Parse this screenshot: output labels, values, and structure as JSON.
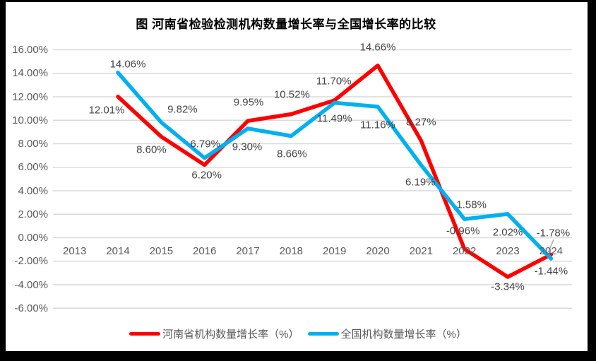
{
  "chart_data": {
    "type": "line",
    "title": "图  河南省检验检测机构数量增长率与全国增长率的比较",
    "categories": [
      "2013",
      "2014",
      "2015",
      "2016",
      "2017",
      "2018",
      "2019",
      "2020",
      "2021",
      "2022",
      "2023",
      "2024"
    ],
    "series": [
      {
        "name": "河南省机构数量增长率（%）",
        "color": "#FF0000",
        "values": [
          null,
          12.01,
          8.6,
          6.2,
          9.95,
          10.52,
          11.7,
          14.66,
          8.27,
          -0.96,
          -3.34,
          -1.44
        ],
        "labels": [
          null,
          "12.01%",
          "8.60%",
          "6.20%",
          "9.95%",
          "10.52%",
          "11.70%",
          "14.66%",
          "8.27%",
          "-0.96%",
          "-3.34%",
          "-1.44%"
        ]
      },
      {
        "name": "全国机构数量增长率（%）",
        "color": "#00B0F0",
        "values": [
          null,
          14.06,
          9.82,
          6.79,
          9.3,
          8.66,
          11.49,
          11.16,
          6.19,
          1.58,
          2.02,
          -1.78
        ],
        "labels": [
          null,
          "14.06%",
          "9.82%",
          "6.79%",
          "9.30%",
          "8.66%",
          "11.49%",
          "11.16%",
          "6.19%",
          "1.58%",
          "2.02%",
          "-1.78%"
        ]
      }
    ],
    "y_axis": {
      "min": -6,
      "max": 16,
      "step": 2,
      "tick_labels": [
        "16.00%",
        "14.00%",
        "12.00%",
        "10.00%",
        "8.00%",
        "6.00%",
        "4.00%",
        "2.00%",
        "0.00%",
        "-2.00%",
        "-4.00%",
        "-6.00%"
      ]
    },
    "grid": true,
    "legend_position": "bottom"
  },
  "palette": {
    "gridline": "#D9D9D9",
    "axis_text": "#595959",
    "data_label_text": "#444444",
    "leader_line": "#A6A6A6",
    "frame": "#000000",
    "background": "#FFFFFF"
  }
}
